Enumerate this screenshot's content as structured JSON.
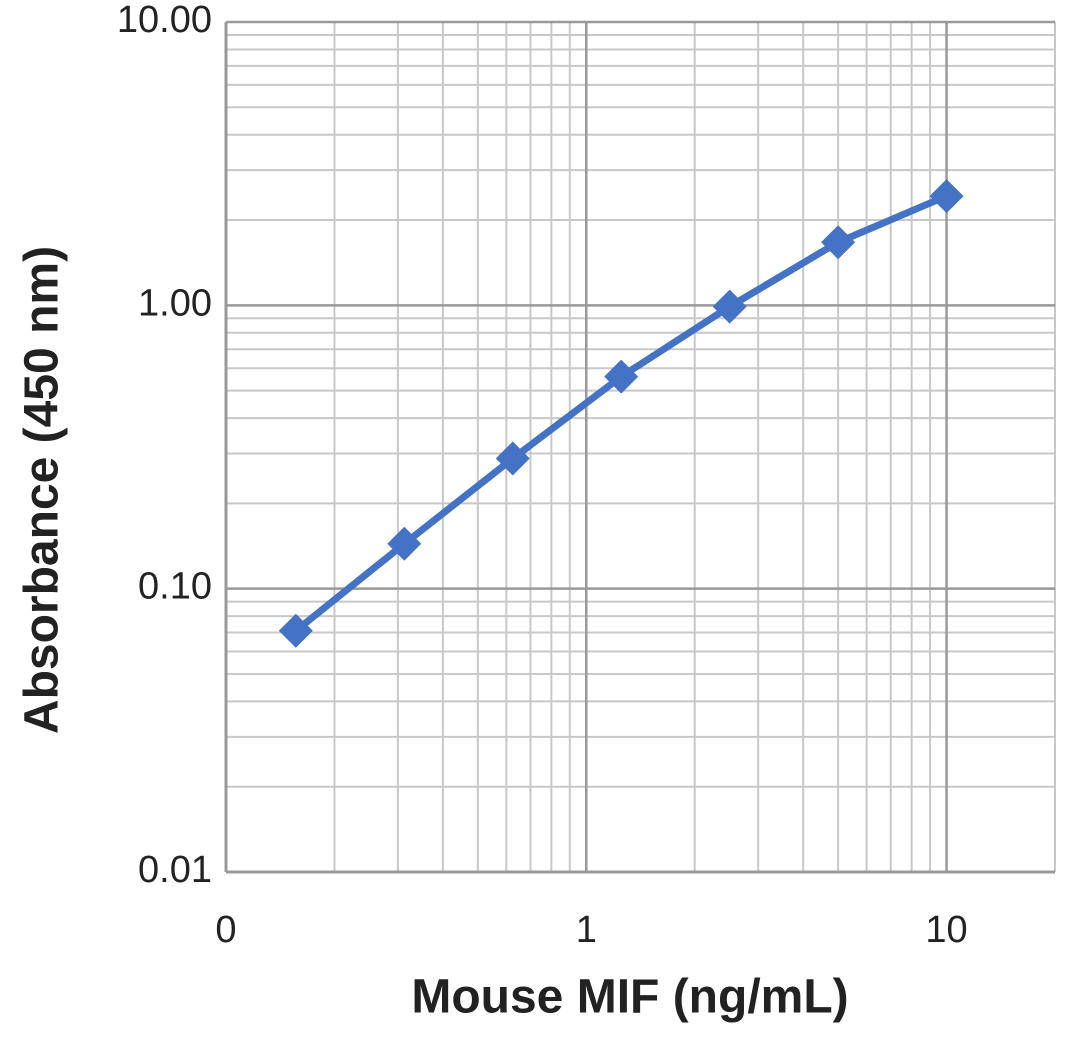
{
  "chart_data": {
    "type": "line",
    "x_label": "Mouse MIF (ng/mL)",
    "y_label": "Absorbance  (450 nm)",
    "x_log": true,
    "y_log": true,
    "grid": true,
    "minor_grid": true,
    "xlim": [
      0.1,
      20
    ],
    "xticks": [
      {
        "value": 0.1,
        "label": "0"
      },
      1,
      10
    ],
    "ylim": [
      0.01,
      10
    ],
    "yticks": [
      {
        "value": 0.01,
        "label": "0.01"
      },
      {
        "value": 0.1,
        "label": "0.10"
      },
      {
        "value": 1,
        "label": "1.00"
      },
      {
        "value": 10,
        "label": "10.00"
      }
    ],
    "x": [
      0.15625,
      0.3125,
      0.625,
      1.25,
      2.5,
      5,
      10
    ],
    "series": [
      {
        "color": "#4472c4",
        "marker": "diamond",
        "values": [
          0.071,
          0.144,
          0.288,
          0.56,
          0.99,
          1.67,
          2.43
        ]
      }
    ]
  }
}
